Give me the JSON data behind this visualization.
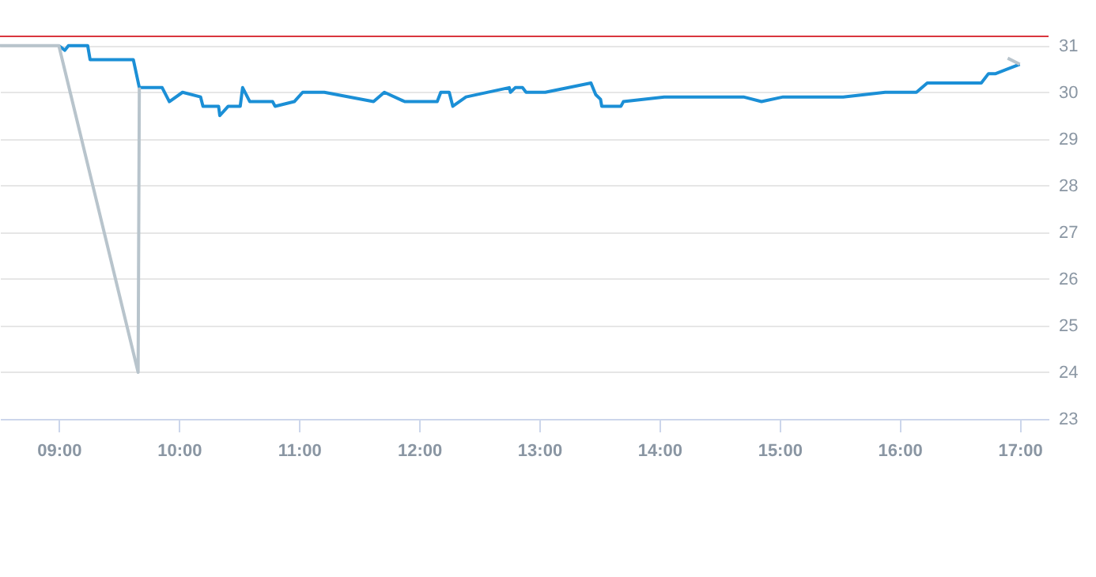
{
  "chart_data": {
    "type": "line",
    "xlim": [
      8.51,
      17.24
    ],
    "xticks": [
      {
        "value": 9,
        "label": "09:00"
      },
      {
        "value": 10,
        "label": "10:00"
      },
      {
        "value": 11,
        "label": "11:00"
      },
      {
        "value": 12,
        "label": "12:00"
      },
      {
        "value": 13,
        "label": "13:00"
      },
      {
        "value": 14,
        "label": "14:00"
      },
      {
        "value": 15,
        "label": "15:00"
      },
      {
        "value": 16,
        "label": "16:00"
      },
      {
        "value": 17,
        "label": "17:00"
      }
    ],
    "ylim": [
      23,
      31.3
    ],
    "yticks": [
      23,
      24,
      25,
      26,
      27,
      28,
      29,
      30,
      31
    ],
    "grid": "y",
    "marker": "none",
    "ref_lines": [
      {
        "axis": "y",
        "value": 31.2,
        "color": "#d9363e"
      }
    ],
    "series": [
      {
        "color": "#1b8fd6",
        "x": [
          9.0,
          9.05,
          9.08,
          9.24,
          9.26,
          9.62,
          9.67,
          9.86,
          9.92,
          10.03,
          10.18,
          10.2,
          10.33,
          10.34,
          10.41,
          10.51,
          10.53,
          10.59,
          10.78,
          10.8,
          10.96,
          11.03,
          11.21,
          11.62,
          11.71,
          11.88,
          12.15,
          12.18,
          12.25,
          12.28,
          12.39,
          12.75,
          12.76,
          12.8,
          12.86,
          12.89,
          13.05,
          13.43,
          13.47,
          13.51,
          13.52,
          13.68,
          13.7,
          14.04,
          14.7,
          14.85,
          15.03,
          15.53,
          15.88,
          16.14,
          16.23,
          16.68,
          16.74,
          16.8,
          17.0
        ],
        "values": [
          31.0,
          30.9,
          31.0,
          31.0,
          30.7,
          30.7,
          30.1,
          30.1,
          29.8,
          30.0,
          29.9,
          29.7,
          29.7,
          29.5,
          29.7,
          29.7,
          30.1,
          29.8,
          29.8,
          29.7,
          29.8,
          30.0,
          30.0,
          29.8,
          30.0,
          29.8,
          29.8,
          30.0,
          30.0,
          29.7,
          29.9,
          30.1,
          30.0,
          30.1,
          30.1,
          30.0,
          30.0,
          30.2,
          29.95,
          29.85,
          29.7,
          29.7,
          29.8,
          29.9,
          29.9,
          29.8,
          29.9,
          29.9,
          30.0,
          30.0,
          30.2,
          30.2,
          30.4,
          30.4,
          30.6
        ]
      },
      {
        "color": "#b8c4cc",
        "x": [
          8.51,
          9.0,
          9.66,
          9.67,
          13.0,
          16.9,
          17.0
        ],
        "values": [
          31.0,
          31.0,
          24.0,
          30.1,
          null,
          30.73,
          30.6
        ]
      }
    ]
  }
}
